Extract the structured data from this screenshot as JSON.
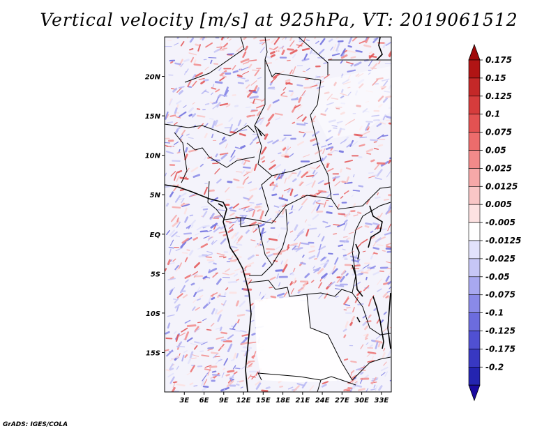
{
  "title": "Vertical velocity [m/s] at 925hPa, VT: 2019061512",
  "footer": "GrADS: IGES/COLA",
  "map": {
    "lat_labels": [
      {
        "label": "20N",
        "lat": 20
      },
      {
        "label": "15N",
        "lat": 15
      },
      {
        "label": "10N",
        "lat": 10
      },
      {
        "label": "5N",
        "lat": 5
      },
      {
        "label": "EQ",
        "lat": 0
      },
      {
        "label": "5S",
        "lat": -5
      },
      {
        "label": "10S",
        "lat": -10
      },
      {
        "label": "15S",
        "lat": -15
      }
    ],
    "lon_labels": [
      {
        "label": "3E",
        "lon": 3
      },
      {
        "label": "6E",
        "lon": 6
      },
      {
        "label": "9E",
        "lon": 9
      },
      {
        "label": "12E",
        "lon": 12
      },
      {
        "label": "15E",
        "lon": 15
      },
      {
        "label": "18E",
        "lon": 18
      },
      {
        "label": "21E",
        "lon": 21
      },
      {
        "label": "24E",
        "lon": 24
      },
      {
        "label": "27E",
        "lon": 27
      },
      {
        "label": "30E",
        "lon": 30
      },
      {
        "label": "33E",
        "lon": 33
      }
    ],
    "lon_range": [
      0,
      34.5
    ],
    "lat_range": [
      -20,
      25
    ]
  },
  "colorbar": {
    "levels": [
      {
        "label": "0.175",
        "color": "#b01414"
      },
      {
        "label": "0.15",
        "color": "#c42828"
      },
      {
        "label": "0.125",
        "color": "#d63c3c"
      },
      {
        "label": "0.1",
        "color": "#e35252"
      },
      {
        "label": "0.075",
        "color": "#ec6c6c"
      },
      {
        "label": "0.05",
        "color": "#f28a8a"
      },
      {
        "label": "0.025",
        "color": "#f6a8a8"
      },
      {
        "label": "0.0125",
        "color": "#f9c6c6"
      },
      {
        "label": "0.005",
        "color": "#fde2e2"
      },
      {
        "label": "-0.005",
        "color": "#ffffff"
      },
      {
        "label": "-0.0125",
        "color": "#e2e2fc"
      },
      {
        "label": "-0.025",
        "color": "#c6c6f6"
      },
      {
        "label": "-0.05",
        "color": "#a8a8f0"
      },
      {
        "label": "-0.075",
        "color": "#8a8ae8"
      },
      {
        "label": "-0.1",
        "color": "#6c6cde"
      },
      {
        "label": "-0.125",
        "color": "#5050d2"
      },
      {
        "label": "-0.175",
        "color": "#3838c2"
      },
      {
        "label": "-0.2",
        "color": "#2424b0"
      }
    ],
    "top_arrow_color": "#a00a0a",
    "bottom_arrow_color": "#1a0aa0"
  }
}
